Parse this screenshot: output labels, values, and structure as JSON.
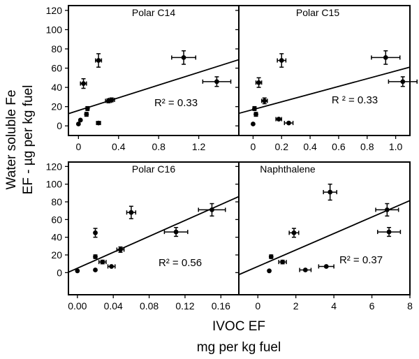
{
  "figure": {
    "ylabel_line1": "Water soluble Fe",
    "ylabel_line2": "EF - µg per kg fuel",
    "xlabel_line1": "IVOC EF",
    "xlabel_line2": "mg per kg fuel"
  },
  "chart_data": [
    {
      "type": "scatter",
      "title": "Polar C14",
      "annotation": "R² = 0.33",
      "xlim": [
        -0.1,
        1.6
      ],
      "ylim": [
        -10,
        125
      ],
      "xticks": [
        0,
        0.4,
        0.8,
        1.2
      ],
      "xtick_labels": [
        "0",
        "0.4",
        "0.8",
        "1.2"
      ],
      "yticks": [
        0,
        20,
        40,
        60,
        80,
        100,
        120
      ],
      "ytick_labels": [
        "0",
        "20",
        "40",
        "60",
        "80",
        "100",
        "120"
      ],
      "points": [
        {
          "x": 0.0,
          "y": 2,
          "xerr": 0,
          "yerr": 0
        },
        {
          "x": 0.02,
          "y": 6,
          "xerr": 0,
          "yerr": 0
        },
        {
          "x": 0.05,
          "y": 44,
          "xerr": 0.03,
          "yerr": 5
        },
        {
          "x": 0.08,
          "y": 12,
          "xerr": 0,
          "yerr": 2
        },
        {
          "x": 0.09,
          "y": 18,
          "xerr": 0,
          "yerr": 2
        },
        {
          "x": 0.2,
          "y": 68,
          "xerr": 0.03,
          "yerr": 7
        },
        {
          "x": 0.2,
          "y": 3,
          "xerr": 0.02,
          "yerr": 0
        },
        {
          "x": 0.3,
          "y": 26,
          "xerr": 0.03,
          "yerr": 2
        },
        {
          "x": 0.33,
          "y": 27,
          "xerr": 0.03,
          "yerr": 2
        },
        {
          "x": 1.05,
          "y": 71,
          "xerr": 0.12,
          "yerr": 7
        },
        {
          "x": 1.38,
          "y": 46,
          "xerr": 0.14,
          "yerr": 5
        }
      ],
      "fit": {
        "slope": 33,
        "intercept": 16
      }
    },
    {
      "type": "scatter",
      "title": "Polar C15",
      "annotation": "R ² = 0.33",
      "xlim": [
        -0.1,
        1.1
      ],
      "ylim": [
        -10,
        125
      ],
      "xticks": [
        0,
        0.2,
        0.4,
        0.6,
        0.8,
        1.0
      ],
      "xtick_labels": [
        "0",
        "0.2",
        "0.4",
        "0.6",
        "0.8",
        "1.0"
      ],
      "yticks": [
        0,
        20,
        40,
        60,
        80,
        100,
        120
      ],
      "ytick_labels": [
        "0",
        "20",
        "40",
        "60",
        "80",
        "100",
        "120"
      ],
      "points": [
        {
          "x": 0.0,
          "y": 2,
          "xerr": 0,
          "yerr": 0
        },
        {
          "x": 0.01,
          "y": 18,
          "xerr": 0,
          "yerr": 2
        },
        {
          "x": 0.02,
          "y": 12,
          "xerr": 0,
          "yerr": 2
        },
        {
          "x": 0.04,
          "y": 45,
          "xerr": 0.02,
          "yerr": 5
        },
        {
          "x": 0.08,
          "y": 26,
          "xerr": 0.02,
          "yerr": 3
        },
        {
          "x": 0.18,
          "y": 7,
          "xerr": 0.02,
          "yerr": 0
        },
        {
          "x": 0.2,
          "y": 68,
          "xerr": 0.03,
          "yerr": 7
        },
        {
          "x": 0.25,
          "y": 3,
          "xerr": 0.03,
          "yerr": 0
        },
        {
          "x": 0.93,
          "y": 71,
          "xerr": 0.1,
          "yerr": 7
        },
        {
          "x": 1.05,
          "y": 46,
          "xerr": 0.1,
          "yerr": 5
        }
      ],
      "fit": {
        "slope": 40,
        "intercept": 17
      }
    },
    {
      "type": "scatter",
      "title": "Polar C16",
      "annotation": "R² = 0.56",
      "xlim": [
        -0.01,
        0.18
      ],
      "ylim": [
        -25,
        125
      ],
      "xticks": [
        0,
        0.04,
        0.08,
        0.12,
        0.16
      ],
      "xtick_labels": [
        "0.00",
        "0.04",
        "0.08",
        "0.12",
        "0.16"
      ],
      "yticks": [
        0,
        20,
        40,
        60,
        80,
        100,
        120
      ],
      "ytick_labels": [
        "0",
        "20",
        "40",
        "60",
        "80",
        "100",
        "120"
      ],
      "points": [
        {
          "x": 0.0,
          "y": 2,
          "xerr": 0,
          "yerr": 0
        },
        {
          "x": 0.02,
          "y": 3,
          "xerr": 0,
          "yerr": 0
        },
        {
          "x": 0.02,
          "y": 18,
          "xerr": 0,
          "yerr": 2
        },
        {
          "x": 0.02,
          "y": 45,
          "xerr": 0,
          "yerr": 5
        },
        {
          "x": 0.028,
          "y": 12,
          "xerr": 0.004,
          "yerr": 2
        },
        {
          "x": 0.038,
          "y": 7,
          "xerr": 0.004,
          "yerr": 0
        },
        {
          "x": 0.048,
          "y": 26,
          "xerr": 0.004,
          "yerr": 3
        },
        {
          "x": 0.06,
          "y": 68,
          "xerr": 0.005,
          "yerr": 7
        },
        {
          "x": 0.11,
          "y": 46,
          "xerr": 0.013,
          "yerr": 5
        },
        {
          "x": 0.15,
          "y": 71,
          "xerr": 0.015,
          "yerr": 7
        }
      ],
      "fit": {
        "slope": 450,
        "intercept": 5
      }
    },
    {
      "type": "scatter",
      "title": "Naphthalene",
      "annotation": "R² = 0.37",
      "xlim": [
        -1,
        8
      ],
      "ylim": [
        -25,
        125
      ],
      "xticks": [
        0,
        2,
        4,
        6,
        8
      ],
      "xtick_labels": [
        "0",
        "2",
        "4",
        "6",
        "8"
      ],
      "yticks": [
        0,
        20,
        40,
        60,
        80,
        100,
        120
      ],
      "ytick_labels": [
        "0",
        "20",
        "40",
        "60",
        "80",
        "100",
        "120"
      ],
      "points": [
        {
          "x": 0.6,
          "y": 2,
          "xerr": 0,
          "yerr": 0
        },
        {
          "x": 0.7,
          "y": 18,
          "xerr": 0,
          "yerr": 2
        },
        {
          "x": 1.3,
          "y": 12,
          "xerr": 0.2,
          "yerr": 2
        },
        {
          "x": 1.9,
          "y": 45,
          "xerr": 0.25,
          "yerr": 5
        },
        {
          "x": 2.5,
          "y": 3,
          "xerr": 0.3,
          "yerr": 0
        },
        {
          "x": 3.6,
          "y": 7,
          "xerr": 0.4,
          "yerr": 0
        },
        {
          "x": 3.8,
          "y": 91,
          "xerr": 0.35,
          "yerr": 9
        },
        {
          "x": 6.8,
          "y": 71,
          "xerr": 0.6,
          "yerr": 7
        },
        {
          "x": 6.9,
          "y": 46,
          "xerr": 0.6,
          "yerr": 5
        }
      ],
      "fit": {
        "slope": 9.3,
        "intercept": 7
      }
    }
  ]
}
